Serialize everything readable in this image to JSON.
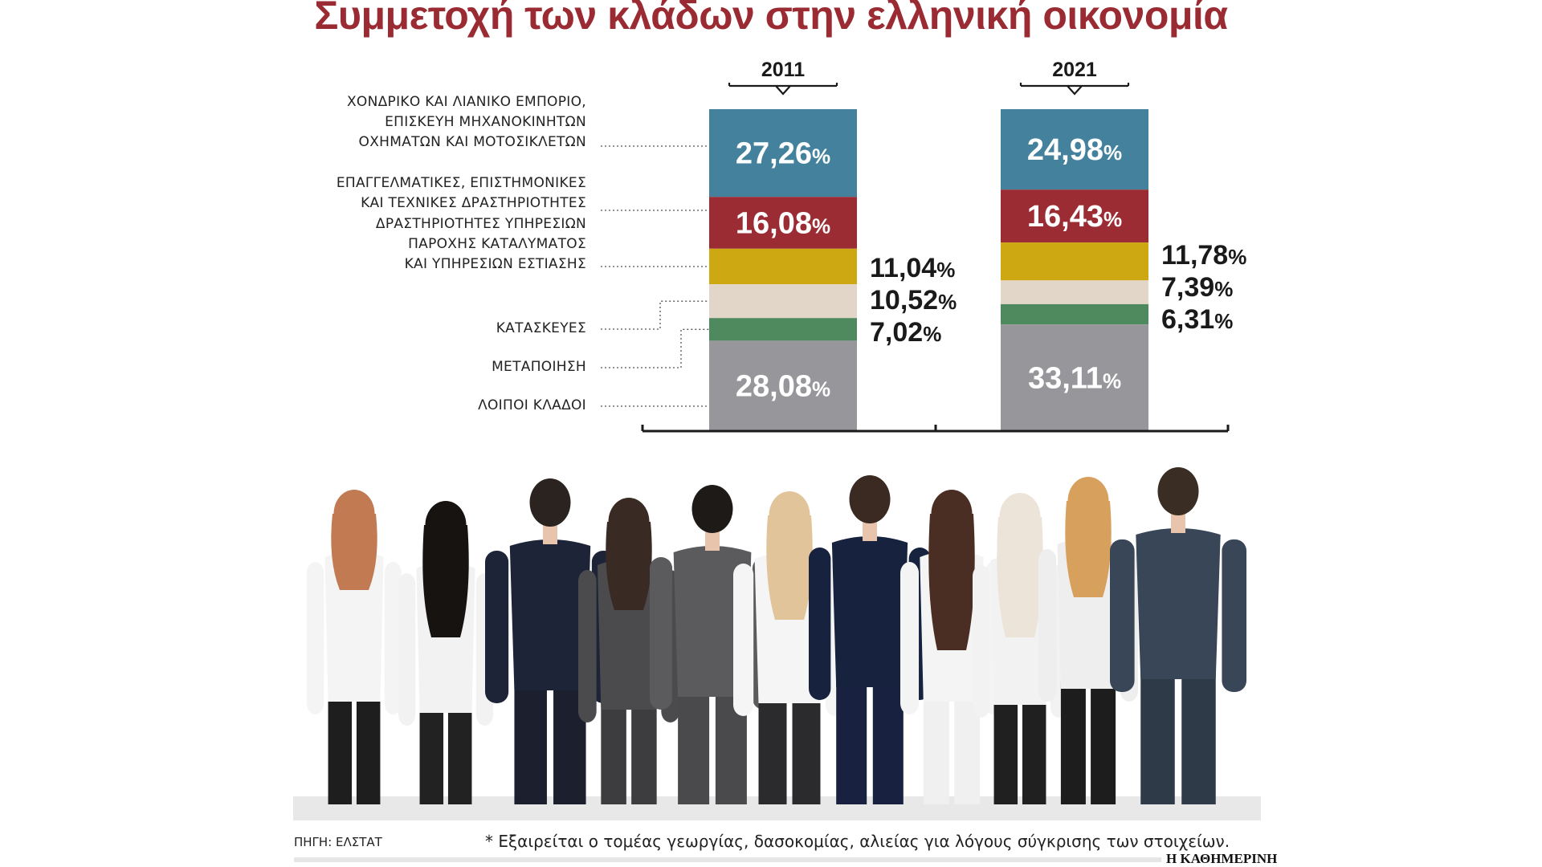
{
  "title": "Συμμετοχή των κλάδων στην ελληνική οικονομία",
  "chart_data": {
    "type": "bar",
    "stacked": true,
    "unit": "%",
    "categories": [
      "2011",
      "2021"
    ],
    "series": [
      {
        "name": "ΧΟΝΔΡΙΚΟ ΚΑΙ ΛΙΑΝΙΚΟ ΕΜΠΟΡΙΟ, ΕΠΙΣΚΕΥΗ ΜΗΧΑΝΟΚΙΝΗΤΩΝ ΟΧΗΜΑΤΩΝ ΚΑΙ ΜΟΤΟΣΙΚΛΕΤΩΝ",
        "values": [
          27.26,
          24.98
        ],
        "labels": [
          "27,26",
          "24,98"
        ],
        "color": "#44819c"
      },
      {
        "name": "ΕΠΑΓΓΕΛΜΑΤΙΚΕΣ, ΕΠΙΣΤΗΜΟΝΙΚΕΣ ΚΑΙ ΤΕΧΝΙΚΕΣ ΔΡΑΣΤΗΡΙΟΤΗΤΕΣ",
        "values": [
          16.08,
          16.43
        ],
        "labels": [
          "16,08",
          "16,43"
        ],
        "color": "#9b2c33"
      },
      {
        "name": "ΔΡΑΣΤΗΡΙΟΤΗΤΕΣ ΥΠΗΡΕΣΙΩΝ ΠΑΡΟΧΗΣ ΚΑΤΑΛΥΜΑΤΟΣ ΚΑΙ ΥΠΗΡΕΣΙΩΝ ΕΣΤΙΑΣΗΣ",
        "values": [
          11.04,
          11.78
        ],
        "labels": [
          "11,04",
          "11,78"
        ],
        "color": "#cda812"
      },
      {
        "name": "ΚΑΤΑΣΚΕΥΕΣ",
        "values": [
          10.52,
          7.39
        ],
        "labels": [
          "10,52",
          "7,39"
        ],
        "color": "#e2d6c9"
      },
      {
        "name": "ΜΕΤΑΠΟΙΗΣΗ",
        "values": [
          7.02,
          6.31
        ],
        "labels": [
          "7,02",
          "6,31"
        ],
        "color": "#4f8a5f"
      },
      {
        "name": "ΛΟΙΠΟΙ ΚΛΑΔΟΙ",
        "values": [
          28.08,
          33.11
        ],
        "labels": [
          "28,08",
          "33,11"
        ],
        "color": "#97979b"
      }
    ],
    "category_label_lines": [
      [
        "ΧΟΝΔΡΙΚΟ ΚΑΙ ΛΙΑΝΙΚΟ ΕΜΠΟΡΙΟ,",
        "ΕΠΙΣΚΕΥΗ ΜΗΧΑΝΟΚΙΝΗΤΩΝ",
        "ΟΧΗΜΑΤΩΝ ΚΑΙ ΜΟΤΟΣΙΚΛΕΤΩΝ"
      ],
      [
        "ΕΠΑΓΓΕΛΜΑΤΙΚΕΣ, ΕΠΙΣΤΗΜΟΝΙΚΕΣ",
        "ΚΑΙ ΤΕΧΝΙΚΕΣ ΔΡΑΣΤΗΡΙΟΤΗΤΕΣ"
      ],
      [
        "ΔΡΑΣΤΗΡΙΟΤΗΤΕΣ ΥΠΗΡΕΣΙΩΝ",
        "ΠΑΡΟΧΗΣ ΚΑΤΑΛΥΜΑΤΟΣ",
        "ΚΑΙ ΥΠΗΡΕΣΙΩΝ ΕΣΤΙΑΣΗΣ"
      ],
      [
        "ΚΑΤΑΣΚΕΥΕΣ"
      ],
      [
        "ΜΕΤΑΠΟΙΗΣΗ"
      ],
      [
        "ΛΟΙΠΟΙ ΚΛΑΔΟΙ"
      ]
    ],
    "legend": "left"
  },
  "footer": {
    "source": "ΠΗΓΗ: ΕΛΣΤΑΤ",
    "note": "* Εξαιρείται ο τομέας γεωργίας, δασοκομίας, αλιείας για λόγους σύγκρισης των στοιχείων.",
    "brand": "Η ΚΑΘΗΜΕΡΙΝΗ"
  },
  "photo": {
    "people_count": 10,
    "colors": {
      "skin": "#e9c4ad",
      "shadow": "#e8e8e8"
    }
  }
}
